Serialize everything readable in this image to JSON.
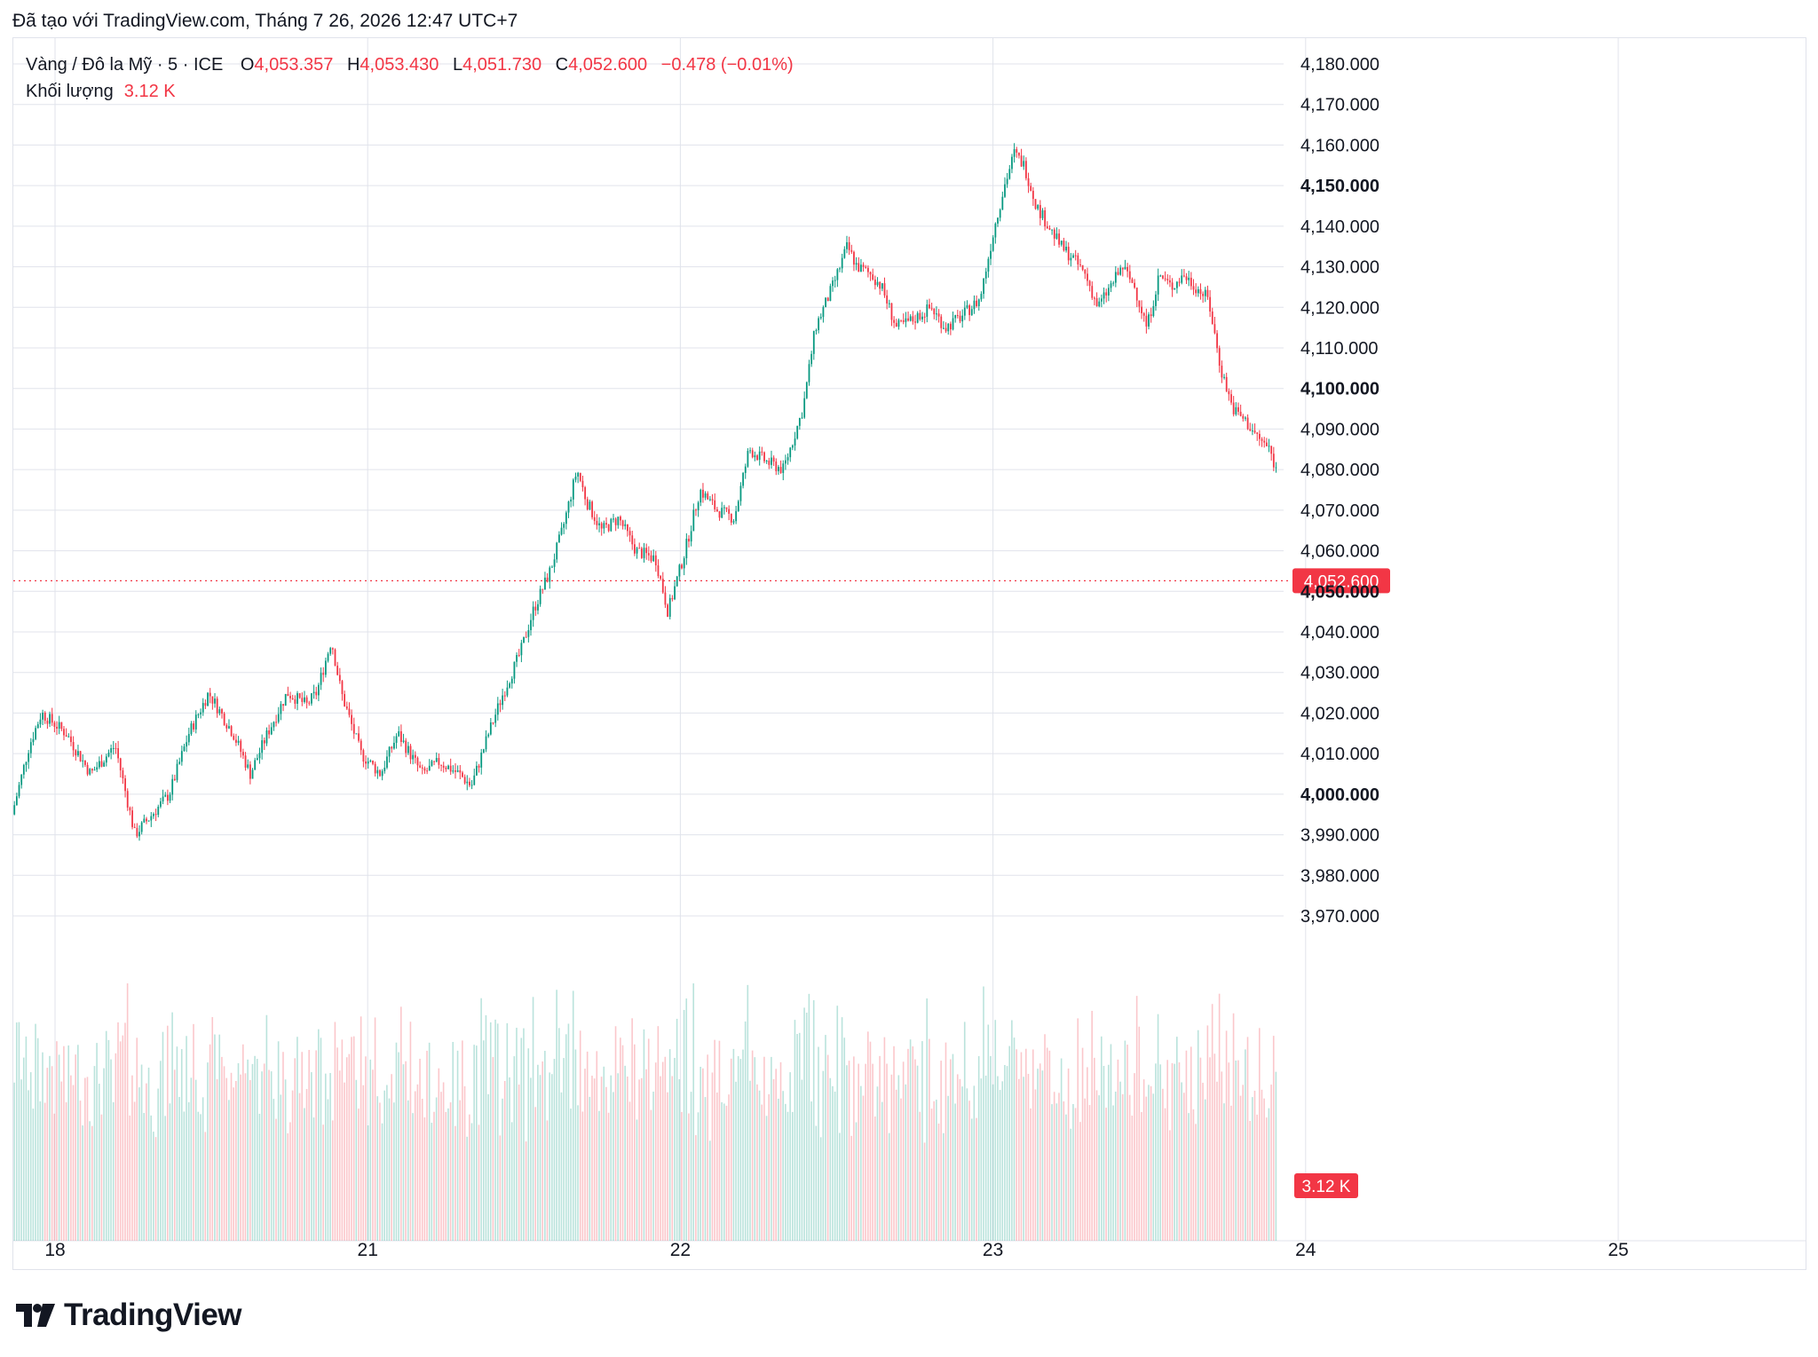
{
  "caption": "Đã tạo với TradingView.com, Tháng 7 26, 2026 12:47 UTC+7",
  "legend": {
    "symbol": "Vàng / Đô la Mỹ · 5 · ICE",
    "o_label": "O",
    "o_value": "4,053.357",
    "h_label": "H",
    "h_value": "4,053.430",
    "l_label": "L",
    "l_value": "4,051.730",
    "c_label": "C",
    "c_value": "4,052.600",
    "change": "−0.478 (−0.01%)",
    "volume_label": "Khối lượng",
    "volume_value": "3.12 K"
  },
  "brand": "TradingView",
  "colors": {
    "up": "#089981",
    "down": "#f23645",
    "grid": "#e0e3eb",
    "text": "#131722"
  },
  "chart_data": {
    "type": "candlestick",
    "symbol": "Vàng / Đô la Mỹ",
    "interval": "5",
    "exchange": "ICE",
    "y_axis": {
      "ylim": [
        3970,
        4185
      ],
      "ticks": [
        "4,180.000",
        "4,170.000",
        "4,160.000",
        "4,150.000",
        "4,140.000",
        "4,130.000",
        "4,120.000",
        "4,110.000",
        "4,100.000",
        "4,090.000",
        "4,080.000",
        "4,070.000",
        "4,060.000",
        "4,050.000",
        "4,040.000",
        "4,030.000",
        "4,020.000",
        "4,010.000",
        "4,000.000",
        "3,990.000",
        "3,980.000",
        "3,970.000"
      ],
      "tick_values": [
        4180,
        4170,
        4160,
        4150,
        4140,
        4130,
        4120,
        4110,
        4100,
        4090,
        4080,
        4070,
        4060,
        4050,
        4040,
        4030,
        4020,
        4010,
        4000,
        3990,
        3980,
        3970
      ],
      "bold_ticks": [
        4150,
        4100,
        4050,
        4000
      ]
    },
    "x_axis": {
      "ticks": [
        "18",
        "21",
        "22",
        "23",
        "24",
        "25"
      ],
      "tick_positions_days": [
        0,
        1,
        2,
        3,
        4,
        5
      ],
      "xlim_days": [
        -0.13,
        5.2
      ]
    },
    "last_price": 4052.6,
    "last_price_label": "4,052.600",
    "volume_badge": "3.12 K",
    "price_path": [
      [
        -0.12,
        3995
      ],
      [
        -0.05,
        4012
      ],
      [
        0.0,
        4020
      ],
      [
        0.1,
        4015
      ],
      [
        0.2,
        4005
      ],
      [
        0.3,
        4012
      ],
      [
        0.38,
        3990
      ],
      [
        0.45,
        3995
      ],
      [
        0.52,
        4000
      ],
      [
        0.6,
        4015
      ],
      [
        0.68,
        4025
      ],
      [
        0.78,
        4015
      ],
      [
        0.85,
        4005
      ],
      [
        0.92,
        4015
      ],
      [
        1.0,
        4025
      ],
      [
        1.08,
        4022
      ],
      [
        1.12,
        4025
      ],
      [
        1.18,
        4038
      ],
      [
        1.22,
        4025
      ],
      [
        1.3,
        4010
      ],
      [
        1.38,
        4005
      ],
      [
        1.45,
        4015
      ],
      [
        1.55,
        4005
      ],
      [
        1.62,
        4008
      ],
      [
        1.7,
        4005
      ],
      [
        1.75,
        4002
      ],
      [
        1.82,
        4015
      ],
      [
        1.88,
        4025
      ],
      [
        1.95,
        4035
      ],
      [
        2.0,
        4045
      ],
      [
        2.07,
        4055
      ],
      [
        2.12,
        4065
      ],
      [
        2.18,
        4080
      ],
      [
        2.22,
        4072
      ],
      [
        2.28,
        4065
      ],
      [
        2.35,
        4068
      ],
      [
        2.42,
        4060
      ],
      [
        2.5,
        4058
      ],
      [
        2.55,
        4045
      ],
      [
        2.62,
        4060
      ],
      [
        2.68,
        4075
      ],
      [
        2.75,
        4070
      ],
      [
        2.82,
        4068
      ],
      [
        2.88,
        4085
      ],
      [
        2.95,
        4082
      ],
      [
        3.02,
        4080
      ],
      [
        3.1,
        4095
      ],
      [
        3.15,
        4115
      ],
      [
        3.22,
        4125
      ],
      [
        3.28,
        4135
      ],
      [
        3.32,
        4130
      ],
      [
        3.38,
        4128
      ],
      [
        3.42,
        4125
      ],
      [
        3.48,
        4115
      ],
      [
        3.55,
        4117
      ],
      [
        3.62,
        4120
      ],
      [
        3.68,
        4115
      ],
      [
        3.75,
        4118
      ],
      [
        3.82,
        4122
      ],
      [
        3.88,
        4140
      ],
      [
        3.92,
        4150
      ],
      [
        3.96,
        4158
      ],
      [
        4.0,
        4155
      ],
      [
        4.05,
        4145
      ],
      [
        4.1,
        4140
      ],
      [
        4.15,
        4135
      ],
      [
        4.2,
        4132
      ],
      [
        4.25,
        4128
      ],
      [
        4.3,
        4120
      ],
      [
        4.35,
        4125
      ],
      [
        4.4,
        4130
      ],
      [
        4.45,
        4125
      ],
      [
        4.5,
        4115
      ],
      [
        4.55,
        4128
      ],
      [
        4.6,
        4125
      ],
      [
        4.65,
        4128
      ],
      [
        4.7,
        4125
      ],
      [
        4.75,
        4122
      ],
      [
        4.8,
        4105
      ],
      [
        4.85,
        4095
      ],
      [
        4.9,
        4092
      ],
      [
        4.95,
        4088
      ],
      [
        5.0,
        4085
      ],
      [
        5.05,
        4075
      ],
      [
        5.1,
        4060
      ],
      [
        5.15,
        4045
      ],
      [
        5.2,
        4048
      ],
      [
        5.3,
        4045
      ],
      [
        5.4,
        4047
      ],
      [
        5.5,
        4048
      ],
      [
        5.6,
        4047
      ],
      [
        5.65,
        4043
      ],
      [
        5.7,
        4025
      ],
      [
        5.75,
        4027
      ],
      [
        5.8,
        4025
      ],
      [
        5.85,
        4035
      ],
      [
        5.9,
        4048
      ],
      [
        5.95,
        4052
      ],
      [
        6.0,
        4058
      ],
      [
        6.05,
        4060
      ],
      [
        6.1,
        4055
      ],
      [
        6.15,
        4050
      ],
      [
        6.2,
        4060
      ],
      [
        6.25,
        4065
      ],
      [
        6.3,
        4075
      ],
      [
        6.35,
        4070
      ],
      [
        6.4,
        4065
      ],
      [
        6.45,
        4060
      ],
      [
        6.5,
        4055
      ],
      [
        6.55,
        4053
      ],
      [
        6.6,
        4052.6
      ]
    ]
  }
}
